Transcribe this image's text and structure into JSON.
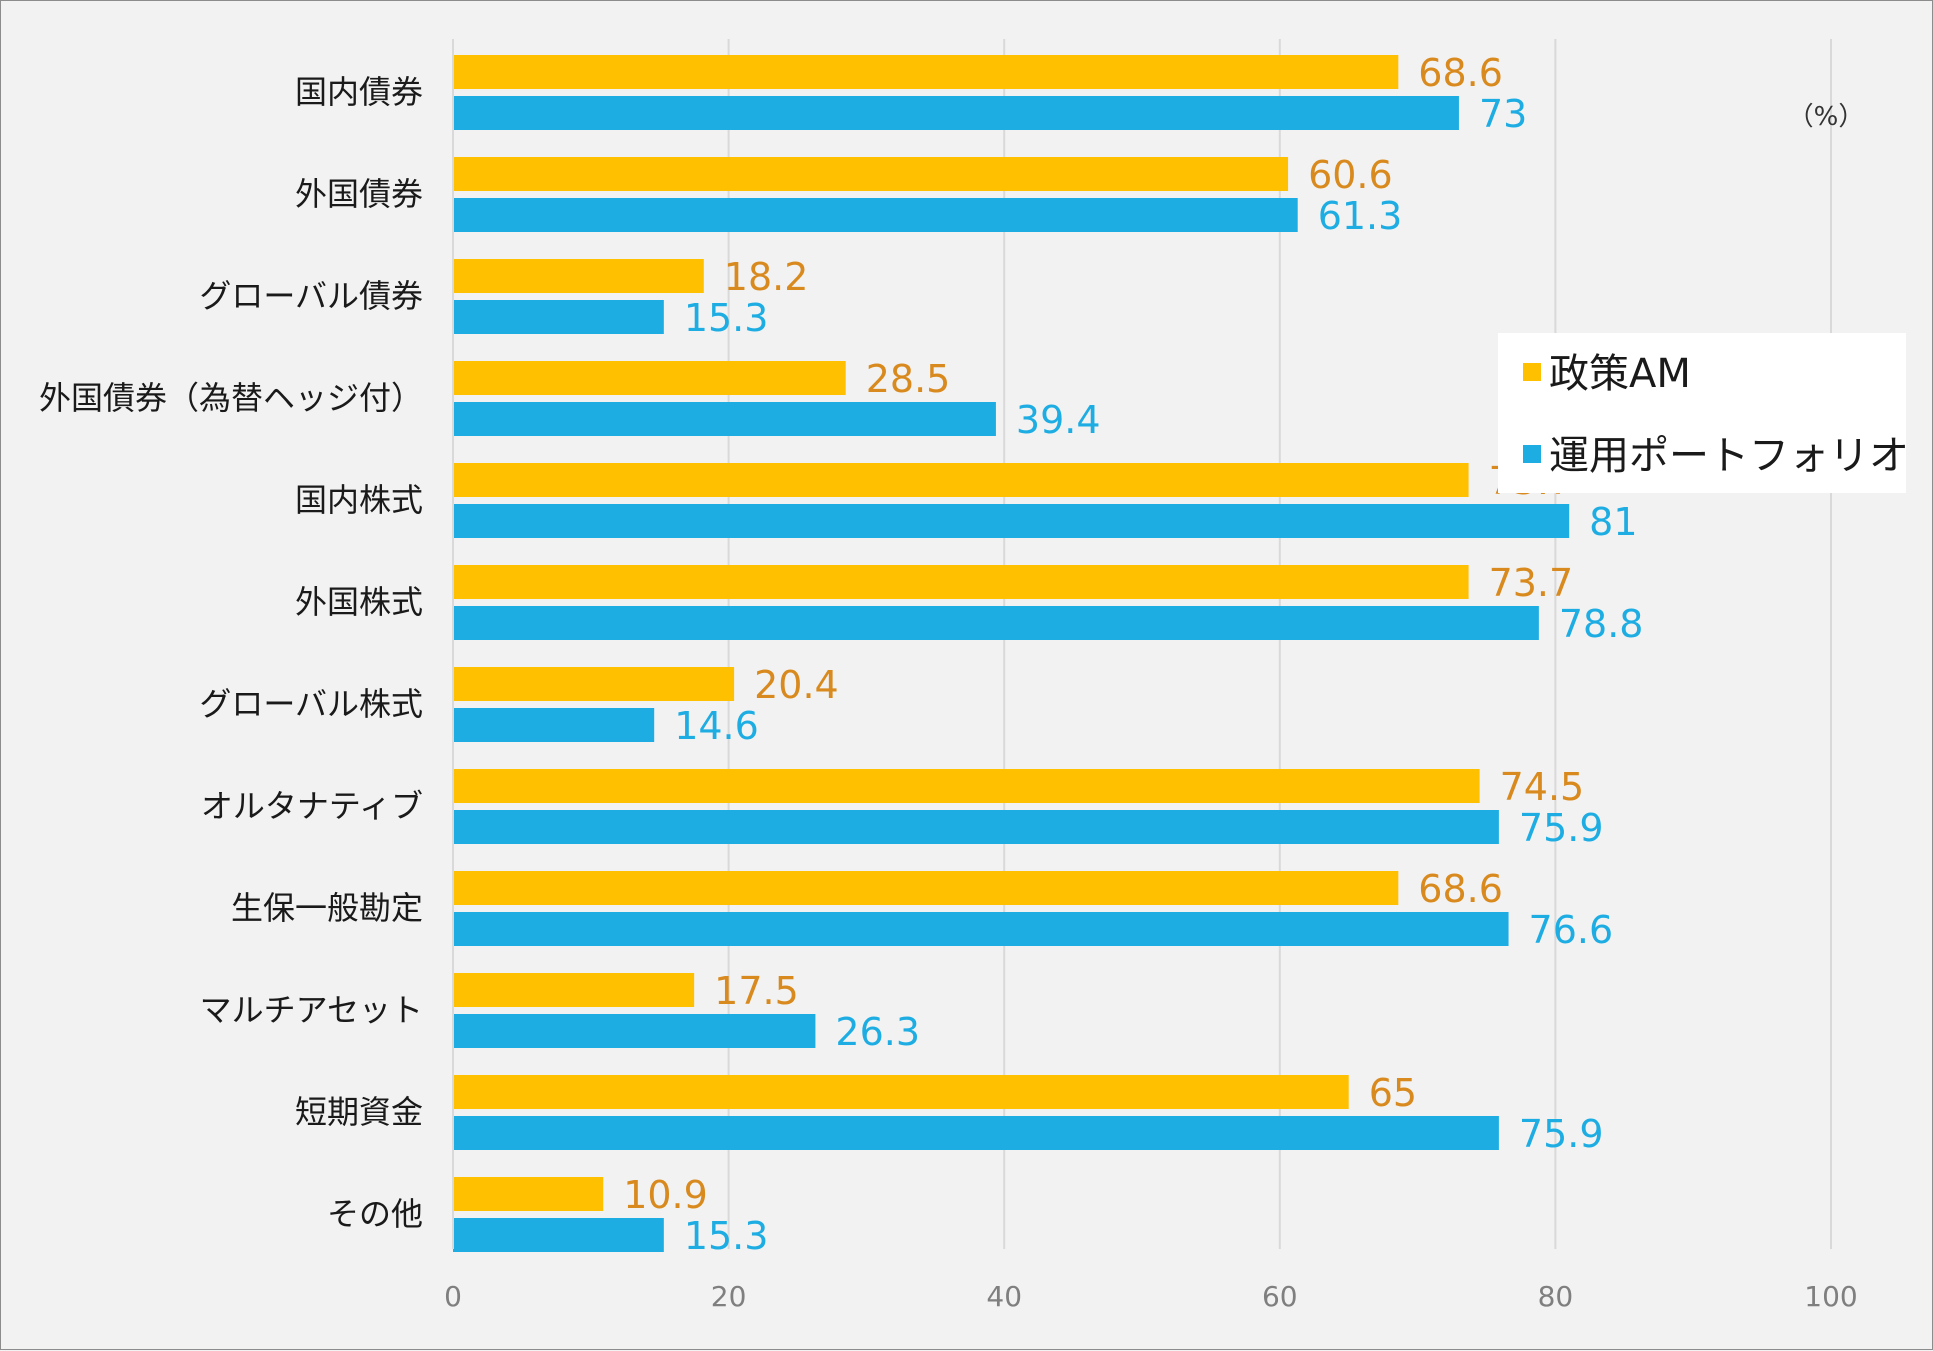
{
  "chart_data": {
    "type": "bar",
    "orientation": "horizontal",
    "title": "",
    "xlabel": "",
    "ylabel": "",
    "unit_label": "（%）",
    "xlim": [
      0,
      100
    ],
    "xticks": [
      "0",
      "20",
      "40",
      "60",
      "80",
      "100"
    ],
    "grid": true,
    "legend_position": "right",
    "categories": [
      "国内債券",
      "外国債券",
      "グローバル債券",
      "外国債券（為替ヘッジ付）",
      "国内株式",
      "外国株式",
      "グローバル株式",
      "オルタナティブ",
      "生保一般勘定",
      "マルチアセット",
      "短期資金",
      "その他"
    ],
    "series": [
      {
        "name": "政策AM",
        "color": "#ffc000",
        "label_color": "#d98a1e",
        "values": [
          68.6,
          60.6,
          18.2,
          28.5,
          73.7,
          73.7,
          20.4,
          74.5,
          68.6,
          17.5,
          65,
          10.9
        ]
      },
      {
        "name": "運用ポートフォリオ",
        "color": "#1eade3",
        "label_color": "#1eade3",
        "values": [
          73,
          61.3,
          15.3,
          39.4,
          81,
          78.8,
          14.6,
          75.9,
          76.6,
          26.3,
          75.9,
          15.3
        ]
      }
    ]
  }
}
